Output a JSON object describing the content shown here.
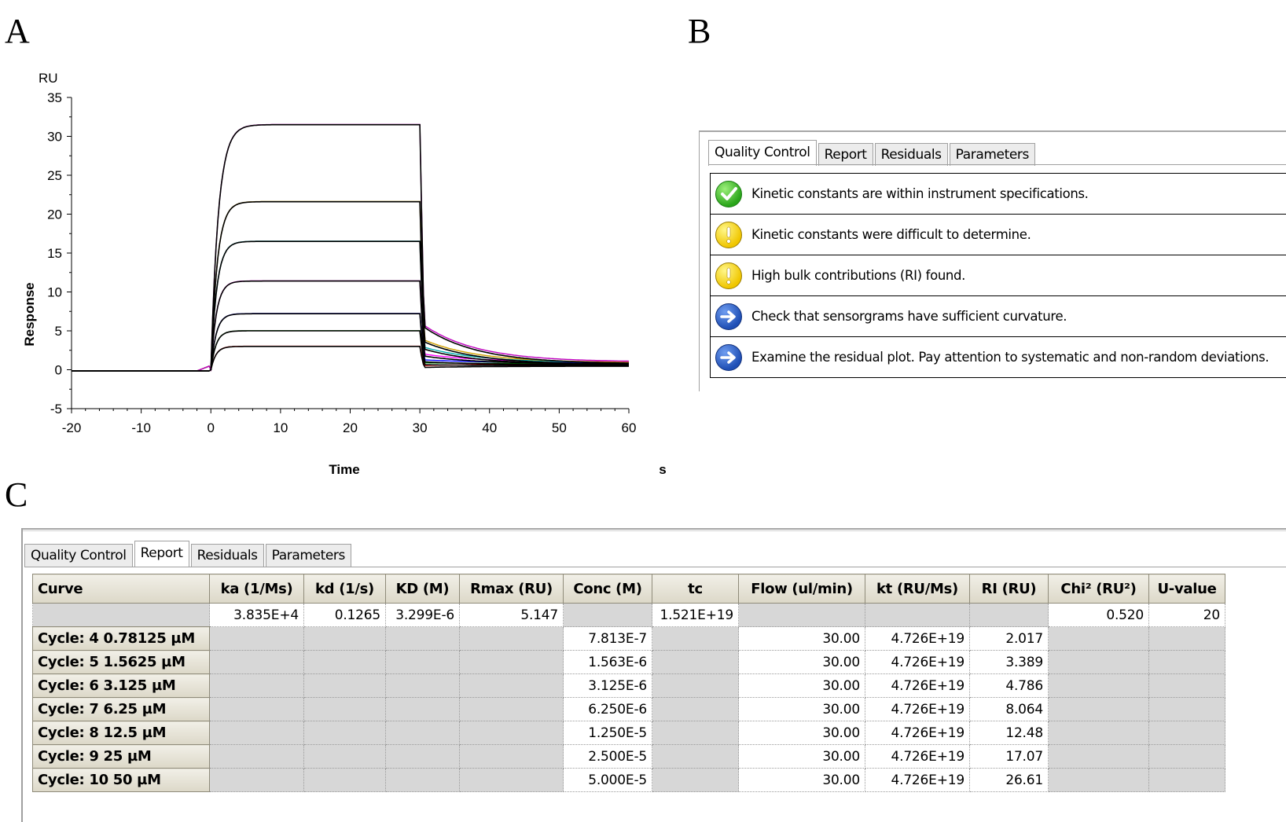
{
  "panel_letters": {
    "a": "A",
    "b": "B",
    "c": "C"
  },
  "chart_data": {
    "type": "line",
    "title": "",
    "xlabel": "Time",
    "x_unit": "s",
    "ylabel": "Response",
    "y_unit": "RU",
    "xlim": [
      -20,
      60
    ],
    "ylim": [
      -5,
      35
    ],
    "x_ticks": [
      -20,
      -10,
      0,
      10,
      20,
      30,
      40,
      50,
      60
    ],
    "y_ticks": [
      -5,
      0,
      5,
      10,
      15,
      20,
      25,
      30,
      35
    ],
    "x_tick_labels": [
      "-20",
      "-10",
      "0",
      "10",
      "20",
      "30",
      "40",
      "50",
      "60"
    ],
    "y_tick_labels": [
      "-5",
      "0",
      "5",
      "10",
      "15",
      "20",
      "25",
      "30",
      "35"
    ],
    "association_start": 0,
    "dissociation_start": 30,
    "series": [
      {
        "plateau": 3.0,
        "color": "#ff0000",
        "dissociation_end": 0.7,
        "baseline": -0.15
      },
      {
        "plateau": 5.0,
        "color": "#008000",
        "dissociation_end": 0.8,
        "baseline": -0.15
      },
      {
        "plateau": 7.2,
        "color": "#0000ff",
        "dissociation_end": 0.9,
        "baseline": -0.15
      },
      {
        "plateau": 11.4,
        "color": "#ff00ff",
        "dissociation_end": 1.0,
        "baseline": -0.15
      },
      {
        "plateau": 16.5,
        "color": "#00b0b0",
        "dissociation_end": 0.9,
        "baseline": -0.15
      },
      {
        "plateau": 21.6,
        "color": "#d0a000",
        "dissociation_end": 0.9,
        "baseline": -0.15
      },
      {
        "plateau": 31.5,
        "color": "#c000c0",
        "dissociation_end": 1.0,
        "baseline": -0.15
      }
    ],
    "fit_color": "#000000",
    "grid": false
  },
  "panelB": {
    "tabs": [
      "Quality Control",
      "Report",
      "Residuals",
      "Parameters"
    ],
    "active_tab": 0,
    "items": [
      {
        "icon": "check-icon",
        "kind": "ok",
        "text": "Kinetic constants are within instrument specifications."
      },
      {
        "icon": "warning-icon",
        "kind": "warn",
        "text": "Kinetic constants were difficult to determine."
      },
      {
        "icon": "warning-icon",
        "kind": "warn",
        "text": "High bulk contributions (RI) found."
      },
      {
        "icon": "arrow-right-icon",
        "kind": "info",
        "text": "Check that sensorgrams have sufficient curvature."
      },
      {
        "icon": "arrow-right-icon",
        "kind": "info",
        "text": "Examine the residual plot. Pay attention to systematic and non-random deviations."
      }
    ]
  },
  "panelC": {
    "tabs": [
      "Quality Control",
      "Report",
      "Residuals",
      "Parameters"
    ],
    "active_tab": 1,
    "columns": [
      "Curve",
      "ka (1/Ms)",
      "kd (1/s)",
      "KD (M)",
      "Rmax (RU)",
      "Conc (M)",
      "tc",
      "Flow (ul/min)",
      "kt (RU/Ms)",
      "RI (RU)",
      "Chi² (RU²)",
      "U-value"
    ],
    "summary_row": [
      "",
      "3.835E+4",
      "0.1265",
      "3.299E-6",
      "5.147",
      "",
      "1.521E+19",
      "",
      "",
      "",
      "0.520",
      "20"
    ],
    "rows": [
      [
        "Cycle: 4  0.78125 µM",
        "",
        "",
        "",
        "",
        "7.813E-7",
        "",
        "30.00",
        "4.726E+19",
        "2.017",
        "",
        ""
      ],
      [
        "Cycle: 5  1.5625 µM",
        "",
        "",
        "",
        "",
        "1.563E-6",
        "",
        "30.00",
        "4.726E+19",
        "3.389",
        "",
        ""
      ],
      [
        "Cycle: 6  3.125 µM",
        "",
        "",
        "",
        "",
        "3.125E-6",
        "",
        "30.00",
        "4.726E+19",
        "4.786",
        "",
        ""
      ],
      [
        "Cycle: 7  6.25 µM",
        "",
        "",
        "",
        "",
        "6.250E-6",
        "",
        "30.00",
        "4.726E+19",
        "8.064",
        "",
        ""
      ],
      [
        "Cycle: 8  12.5 µM",
        "",
        "",
        "",
        "",
        "1.250E-5",
        "",
        "30.00",
        "4.726E+19",
        "12.48",
        "",
        ""
      ],
      [
        "Cycle: 9  25 µM",
        "",
        "",
        "",
        "",
        "2.500E-5",
        "",
        "30.00",
        "4.726E+19",
        "17.07",
        "",
        ""
      ],
      [
        "Cycle: 10  50 µM",
        "",
        "",
        "",
        "",
        "5.000E-5",
        "",
        "30.00",
        "4.726E+19",
        "26.61",
        "",
        ""
      ]
    ]
  }
}
